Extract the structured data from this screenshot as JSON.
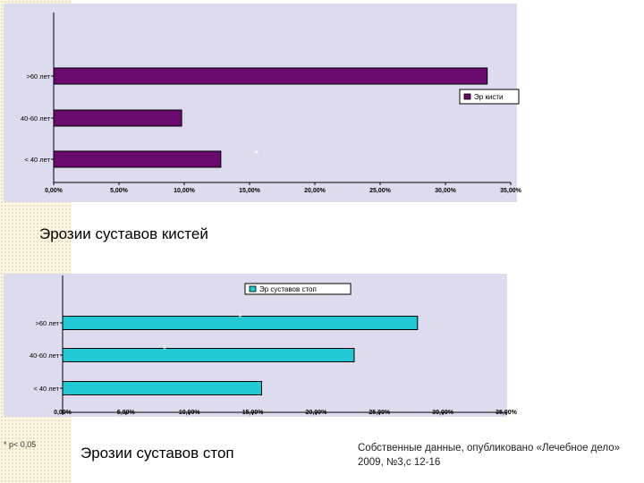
{
  "chart_data": [
    {
      "type": "bar",
      "orientation": "horizontal",
      "categories": [
        ">60 лет",
        "40-60 лет",
        "< 40 лет"
      ],
      "series": [
        {
          "name": "Эр кисти",
          "values": [
            0.332,
            0.098,
            0.128
          ],
          "color": "#6a0a6e"
        }
      ],
      "xlim": [
        0,
        0.35
      ],
      "xticks": [
        "0,00%",
        "5,00%",
        "10,00%",
        "15,00%",
        "20,00%",
        "25,00%",
        "30,00%",
        "35,00%"
      ],
      "legend": "right",
      "annotations": [
        {
          "category": "< 40 лет",
          "text": "*"
        }
      ],
      "grid": false,
      "background": "#dcdcee"
    },
    {
      "type": "bar",
      "orientation": "horizontal",
      "categories": [
        ">60 лет",
        "40-60 лет",
        "< 40 лет"
      ],
      "series": [
        {
          "name": "Эр суставов стоп",
          "values": [
            0.28,
            0.23,
            0.157
          ],
          "color": "#22c8d4"
        }
      ],
      "xlim": [
        0,
        0.35
      ],
      "xticks": [
        "0,00%",
        "5,00%",
        "10,00%",
        "15,00%",
        "20,00%",
        "25,00%",
        "30,00%",
        "35,00%"
      ],
      "legend": "top",
      "annotations": [
        {
          "category": ">60 лет",
          "text": "*"
        },
        {
          "category": "40-60 лет",
          "text": "*"
        }
      ],
      "grid": false,
      "background": "#dcdcee"
    }
  ],
  "captions": {
    "hands": "Эрозии  суставов кистей",
    "feet": "Эрозии суставов стоп"
  },
  "footnote": "* p< 0,05",
  "source": "Собственные данные, опубликовано «Лечебное дело» 2009, №3,с 12-16"
}
